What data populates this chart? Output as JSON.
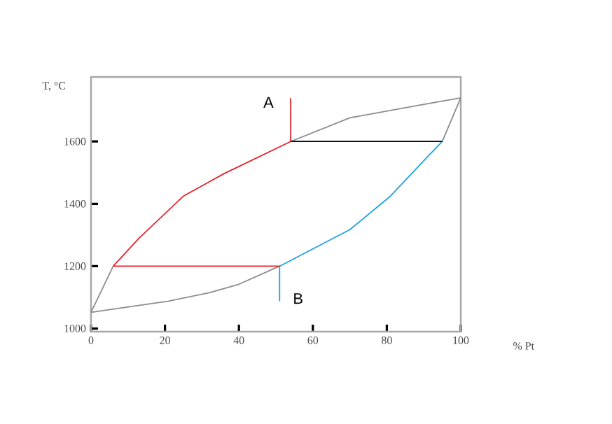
{
  "chart_data": {
    "type": "line",
    "xlabel": "% Pt",
    "ylabel": "T, °C",
    "xlim": [
      0,
      100
    ],
    "ylim": [
      990,
      1807
    ],
    "xticks": [
      0,
      20,
      40,
      60,
      80,
      100
    ],
    "yticks": [
      1000,
      1200,
      1400,
      1600
    ],
    "grid": false,
    "series": [
      {
        "color": "#8c8c8c",
        "x": [
          0,
          6
        ],
        "values": [
          1052,
          1200
        ]
      },
      {
        "color": "#8c8c8c",
        "x": [
          54,
          70,
          89,
          100
        ],
        "values": [
          1600,
          1676,
          1717,
          1740
        ]
      },
      {
        "color": "#8c8c8c",
        "x": [
          0,
          21,
          32,
          40,
          51
        ],
        "values": [
          1052,
          1088,
          1115,
          1142,
          1200
        ]
      },
      {
        "color": "#8c8c8c",
        "x": [
          95,
          100
        ],
        "values": [
          1600,
          1740
        ]
      },
      {
        "color": "#e8202a",
        "x": [
          6,
          13,
          25,
          36,
          54
        ],
        "values": [
          1200,
          1290,
          1425,
          1497,
          1600
        ]
      },
      {
        "color": "#1ea0e0",
        "x": [
          51,
          70,
          81,
          91,
          95
        ],
        "values": [
          1200,
          1317,
          1425,
          1551,
          1600
        ]
      },
      {
        "color": "#e8202a",
        "x": [
          6,
          51
        ],
        "values": [
          1200,
          1200
        ]
      },
      {
        "color": "#000000",
        "x": [
          54,
          95
        ],
        "values": [
          1600,
          1600
        ]
      },
      {
        "color": "#e8202a",
        "x": [
          54,
          54
        ],
        "values": [
          1600,
          1739
        ]
      },
      {
        "color": "#1ea0e0",
        "x": [
          51,
          51
        ],
        "values": [
          1200,
          1088
        ]
      }
    ],
    "annotations": [
      "A",
      "B"
    ]
  }
}
